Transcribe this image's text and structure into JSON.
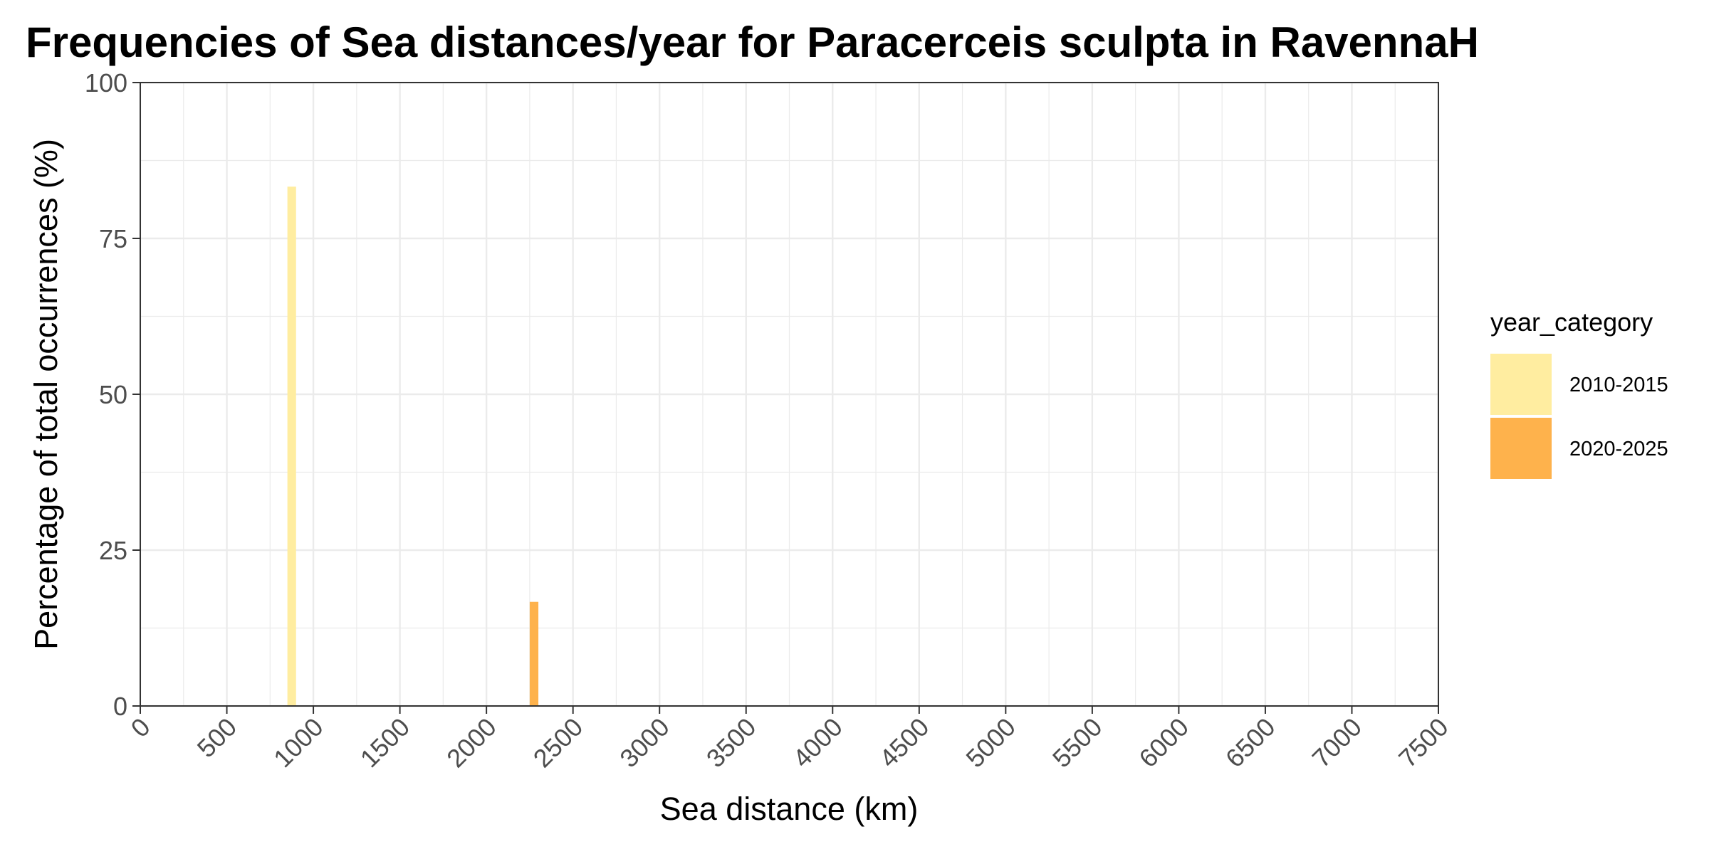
{
  "chart_data": {
    "type": "bar",
    "title": "Frequencies of Sea distances/year for Paracerceis sculpta in RavennaH",
    "xlabel": "Sea distance (km)",
    "ylabel": "Percentage of total occurrences (%)",
    "xlim": [
      0,
      7500
    ],
    "ylim": [
      0,
      100
    ],
    "x_ticks": [
      0,
      500,
      1000,
      1500,
      2000,
      2500,
      3000,
      3500,
      4000,
      4500,
      5000,
      5500,
      6000,
      6500,
      7000,
      7500
    ],
    "y_ticks": [
      0,
      25,
      50,
      75,
      100
    ],
    "grid": true,
    "legend_title": "year_category",
    "legend_position": "right",
    "series": [
      {
        "name": "2010-2015",
        "color": "#FFEDA0",
        "points": [
          {
            "x": 875,
            "y": 83.3
          }
        ]
      },
      {
        "name": "2020-2025",
        "color": "#FEB24C",
        "points": [
          {
            "x": 2275,
            "y": 16.7
          }
        ]
      }
    ],
    "bin_width": 50
  }
}
